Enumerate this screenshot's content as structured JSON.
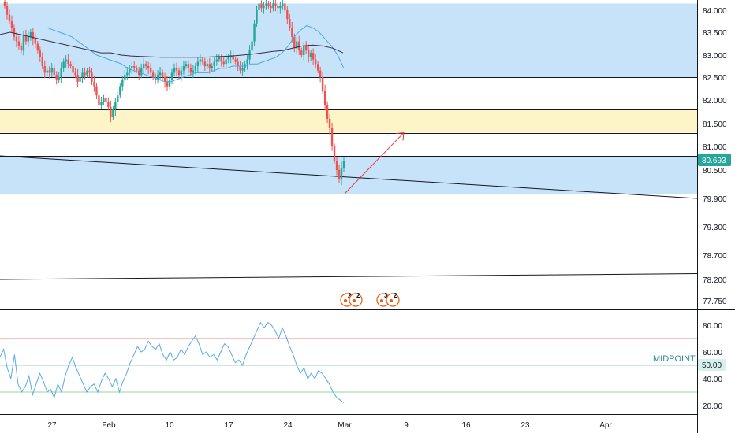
{
  "colors": {
    "zone_blue": "#c6e3fa",
    "zone_yellow": "#fdf4c8",
    "candle_up": "#26a69a",
    "candle_down": "#ef5350",
    "ma_fast": "#4aa7e6",
    "ma_slow": "#3b2a4a",
    "arrow": "#e53935",
    "rsi_line": "#5aa9e6",
    "rsi_upper": "#f08a82",
    "rsi_mid": "#9ad5c9",
    "rsi_lower": "#9ad59a",
    "price_badge": "#26a69a",
    "mid_badge": "#d6f0ec",
    "event_icon": "#e8590c"
  },
  "chart_data": [
    {
      "type": "candlestick",
      "title": "",
      "y_axis": {
        "ticks": [
          "84.000",
          "83.500",
          "83.000",
          "82.500",
          "82.000",
          "81.500",
          "81.000",
          "80.500",
          "79.900",
          "79.300",
          "78.700",
          "78.200",
          "77.750"
        ],
        "ylim": [
          77.5,
          84.15
        ]
      },
      "x_axis": {
        "ticks": [
          "27",
          "Feb",
          "10",
          "17",
          "24",
          "Mar",
          "9",
          "16",
          "23",
          "Apr"
        ]
      },
      "last_price": "80.693",
      "zones": [
        {
          "from": 82.5,
          "to": 84.15,
          "color": "zone_blue"
        },
        {
          "from": 81.3,
          "to": 81.8,
          "color": "zone_yellow"
        },
        {
          "from": 80.0,
          "to": 80.8,
          "color": "zone_blue"
        }
      ],
      "horizontal_lines": [
        82.5,
        81.8,
        81.3,
        80.8,
        80.0
      ],
      "trendlines": [
        {
          "from": [
            "Jan 20",
            80.8
          ],
          "to": [
            "Apr 14",
            79.9
          ]
        },
        {
          "from": [
            "Jan 20",
            78.2
          ],
          "to": [
            "Apr 14",
            78.32
          ]
        }
      ],
      "projection_arrow": {
        "from": [
          "Feb 29",
          80.0
        ],
        "to": [
          "Mar 9",
          81.3
        ]
      },
      "closes": [
        84.1,
        83.9,
        83.75,
        83.6,
        83.4,
        83.3,
        83.2,
        83.1,
        83.45,
        83.3,
        83.4,
        83.5,
        83.35,
        83.25,
        83.1,
        82.95,
        82.75,
        82.6,
        82.65,
        82.6,
        82.7,
        82.55,
        82.45,
        82.5,
        82.7,
        82.85,
        82.9,
        82.8,
        82.75,
        82.6,
        82.55,
        82.4,
        82.5,
        82.6,
        82.55,
        82.65,
        82.6,
        82.4,
        82.3,
        82.1,
        81.9,
        81.95,
        82.05,
        81.95,
        81.85,
        81.65,
        81.8,
        81.95,
        82.1,
        82.3,
        82.45,
        82.55,
        82.6,
        82.7,
        82.75,
        82.7,
        82.65,
        82.55,
        82.7,
        82.8,
        82.75,
        82.7,
        82.6,
        82.5,
        82.45,
        82.55,
        82.6,
        82.5,
        82.4,
        82.3,
        82.45,
        82.6,
        82.7,
        82.65,
        82.55,
        82.65,
        82.75,
        82.8,
        82.7,
        82.6,
        82.65,
        82.75,
        82.85,
        82.9,
        82.85,
        82.75,
        82.8,
        82.7,
        82.75,
        82.85,
        82.9,
        82.95,
        82.85,
        82.8,
        82.9,
        82.95,
        83.0,
        82.9,
        82.85,
        82.75,
        82.65,
        82.7,
        82.8,
        82.9,
        83.1,
        83.3,
        83.7,
        84.0,
        84.15,
        84.05,
        84.1,
        84.15,
        84.1,
        84.05,
        84.15,
        84.1,
        84.05,
        84.1,
        84.15,
        84.0,
        83.8,
        83.6,
        83.4,
        83.15,
        83.3,
        83.1,
        83.0,
        83.2,
        83.1,
        82.95,
        83.05,
        82.9,
        82.8,
        82.65,
        82.5,
        82.2,
        81.9,
        81.6,
        81.4,
        81.0,
        80.7,
        80.5,
        80.3,
        80.55,
        80.693
      ],
      "moving_averages": [
        {
          "name": "",
          "color": "ma_fast",
          "values": [
            83.6,
            83.55,
            83.5,
            83.45,
            83.4,
            83.3,
            83.2,
            83.1,
            83.0,
            82.95,
            82.9,
            82.85,
            82.8,
            82.7,
            82.65,
            82.6,
            82.55,
            82.5,
            82.45,
            82.4,
            82.4,
            82.45,
            82.5,
            82.55,
            82.6,
            82.6,
            82.6,
            82.65,
            82.7,
            82.7,
            82.75,
            82.75,
            82.75,
            82.8,
            82.8,
            82.85,
            82.9,
            82.95,
            83.05,
            83.2,
            83.4,
            83.55,
            83.65,
            83.6,
            83.5,
            83.35,
            83.2,
            83.0,
            82.7
          ]
        },
        {
          "name": "",
          "color": "ma_slow",
          "values": [
            83.45,
            83.5,
            83.45,
            83.4,
            83.35,
            83.3,
            83.25,
            83.2,
            83.15,
            83.1,
            83.05,
            83.05,
            83.0,
            82.98,
            82.97,
            82.96,
            82.95,
            82.95,
            82.95,
            82.95,
            82.95,
            82.96,
            82.97,
            82.98,
            83.0,
            83.02,
            83.05,
            83.08,
            83.1,
            83.15,
            83.2,
            83.22,
            83.2,
            83.15,
            83.05
          ]
        }
      ],
      "event_markers": [
        "2",
        "2",
        "3",
        "2"
      ]
    },
    {
      "type": "line",
      "title": "",
      "y_axis": {
        "ticks": [
          "80.00",
          "60.00",
          "40.00",
          "20.00"
        ],
        "ylim": [
          14,
          90
        ]
      },
      "levels": [
        {
          "value": 70,
          "color": "rsi_upper"
        },
        {
          "value": 50,
          "color": "rsi_mid",
          "label": "MIDPOINT",
          "badge": "50.00"
        },
        {
          "value": 30,
          "color": "rsi_lower"
        }
      ],
      "series": [
        {
          "name": "",
          "color": "rsi_line",
          "values": [
            56,
            62,
            48,
            40,
            58,
            36,
            30,
            34,
            42,
            28,
            36,
            44,
            38,
            30,
            32,
            26,
            36,
            30,
            42,
            50,
            56,
            48,
            42,
            36,
            30,
            34,
            36,
            30,
            38,
            44,
            40,
            34,
            40,
            30,
            38,
            44,
            52,
            58,
            64,
            60,
            62,
            68,
            64,
            62,
            66,
            58,
            54,
            60,
            54,
            56,
            62,
            58,
            64,
            68,
            72,
            66,
            58,
            60,
            56,
            58,
            54,
            60,
            66,
            64,
            58,
            52,
            54,
            50,
            58,
            64,
            70,
            76,
            82,
            78,
            82,
            80,
            76,
            70,
            78,
            72,
            64,
            58,
            50,
            44,
            48,
            40,
            44,
            40,
            46,
            44,
            40,
            36,
            30,
            26,
            24,
            22
          ]
        }
      ]
    }
  ]
}
